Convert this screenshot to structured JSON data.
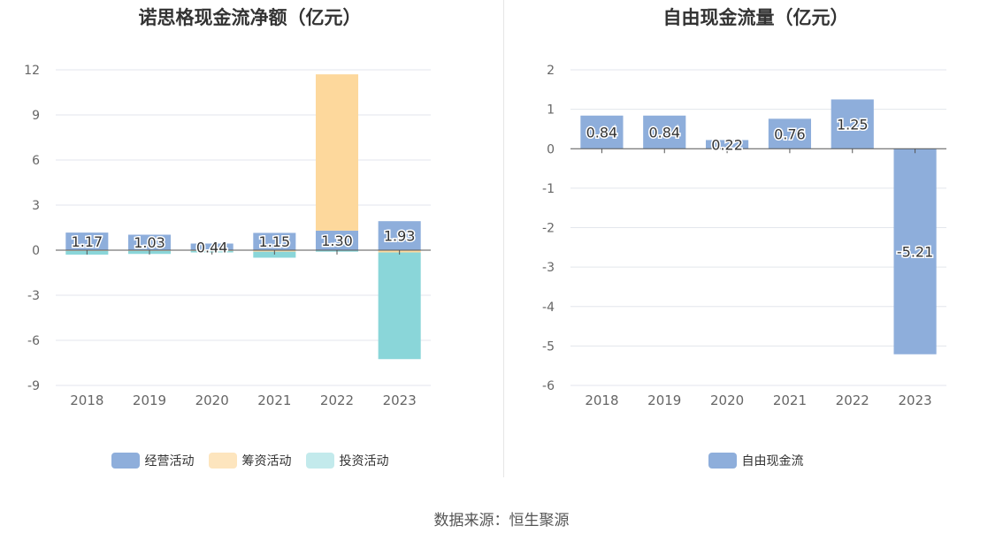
{
  "source_label": "数据来源：",
  "source_name": "恒生聚源",
  "colors": {
    "operating": "#8eaedb",
    "financing": "#fdd89c",
    "investing": "#8ad6d9",
    "free_cash_flow": "#8eaedb",
    "grid": "#e3e6ec",
    "axis": "#555555",
    "tick_text": "#666666"
  },
  "chart_data": [
    {
      "type": "bar",
      "stacked": true,
      "title": "诺思格现金流净额（亿元）",
      "categories": [
        "2018",
        "2019",
        "2020",
        "2021",
        "2022",
        "2023"
      ],
      "ylim": [
        -9,
        12
      ],
      "yticks": [
        12,
        9,
        6,
        3,
        0,
        -3,
        -6,
        -9
      ],
      "grid": true,
      "legend_position": "bottom",
      "series": [
        {
          "name": "经营活动",
          "values": [
            1.17,
            1.03,
            0.44,
            1.15,
            1.3,
            1.93
          ],
          "labels": [
            "1.17",
            "1.03",
            "0.44",
            "1.15",
            "1.30",
            "1.93"
          ]
        },
        {
          "name": "筹资活动",
          "values": [
            -0.05,
            -0.05,
            -0.05,
            -0.1,
            10.4,
            -0.15
          ]
        },
        {
          "name": "投资活动",
          "values": [
            -0.25,
            -0.2,
            -0.1,
            -0.4,
            -0.1,
            -7.1
          ]
        }
      ]
    },
    {
      "type": "bar",
      "title": "自由现金流量（亿元）",
      "categories": [
        "2018",
        "2019",
        "2020",
        "2021",
        "2022",
        "2023"
      ],
      "ylim": [
        -6,
        2
      ],
      "yticks": [
        2,
        1,
        0,
        -1,
        -2,
        -3,
        -4,
        -5,
        -6
      ],
      "grid": true,
      "legend_position": "bottom",
      "series": [
        {
          "name": "自由现金流",
          "values": [
            0.84,
            0.84,
            0.22,
            0.76,
            1.25,
            -5.21
          ],
          "labels": [
            "0.84",
            "0.84",
            "0.22",
            "0.76",
            "1.25",
            "-5.21"
          ]
        }
      ]
    }
  ]
}
